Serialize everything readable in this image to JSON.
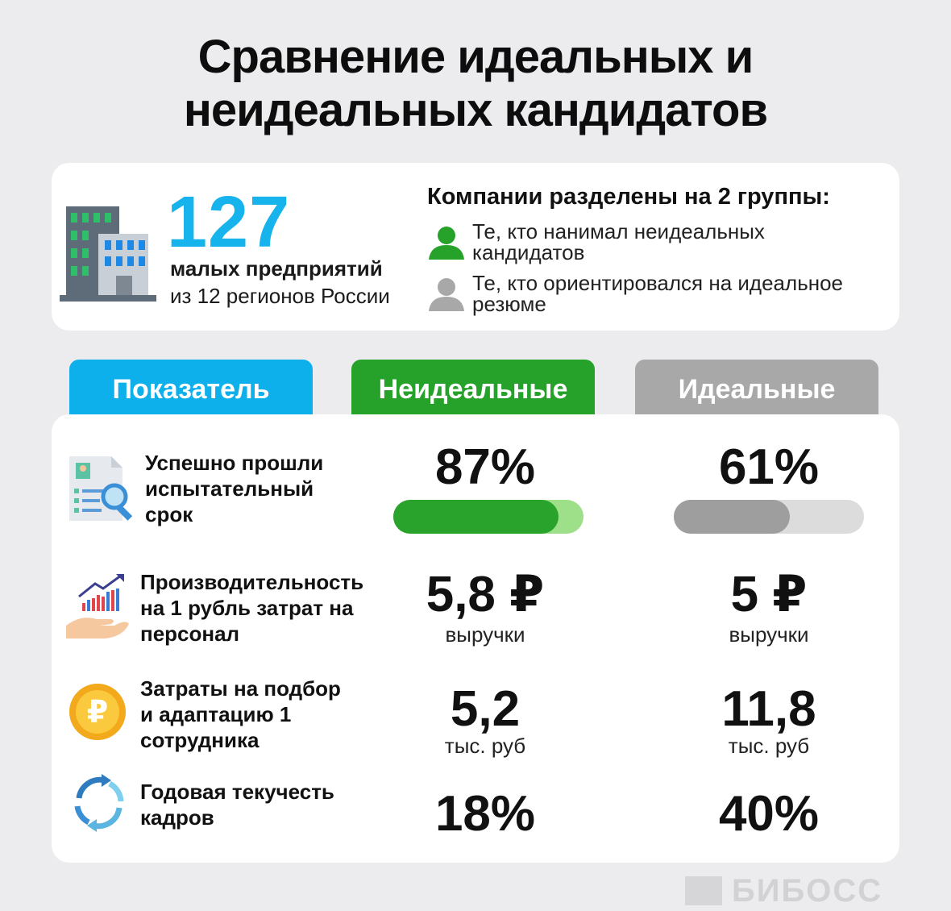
{
  "title": {
    "line1": "Сравнение идеальных и",
    "line2": "неидеальных кандидатов"
  },
  "summary": {
    "count": "127",
    "count_label": "малых предприятий",
    "region_label": "из 12 регионов России",
    "groups_title": "Компании разделены на 2 группы:",
    "groups": [
      {
        "line1": "Те, кто нанимал неидеальных",
        "line2": "кандидатов",
        "icon": "person-green-icon",
        "color": "#26a22a"
      },
      {
        "line1": "Те, кто ориентировался на идеальное",
        "line2": "резюме",
        "icon": "person-gray-icon",
        "color": "#a8a8a8"
      }
    ]
  },
  "headers": {
    "indicator": "Показатель",
    "non_ideal": "Неидеальные",
    "ideal": "Идеальные"
  },
  "colors": {
    "blue": "#0eb0ec",
    "green": "#26a22a",
    "gray": "#a8a8a8"
  },
  "rows": [
    {
      "label": [
        "Успешно прошли",
        "испытательный",
        "срок"
      ],
      "icon": "document-search-icon",
      "non_ideal": {
        "value": "87%",
        "progress": 0.87
      },
      "ideal": {
        "value": "61%",
        "progress": 0.61
      }
    },
    {
      "label": [
        "Производительность",
        "на 1 рубль затрат на",
        "персонал"
      ],
      "icon": "growth-hand-icon",
      "non_ideal": {
        "value": "5,8 ₽",
        "unit": "выручки"
      },
      "ideal": {
        "value": "5 ₽",
        "unit": "выручки"
      }
    },
    {
      "label": [
        "Затраты на подбор",
        "и адаптацию 1",
        "сотрудника"
      ],
      "icon": "ruble-coin-icon",
      "non_ideal": {
        "value": "5,2",
        "unit": "тыс. руб"
      },
      "ideal": {
        "value": "11,8",
        "unit": "тыс. руб"
      }
    },
    {
      "label": [
        "Годовая текучесть",
        "кадров"
      ],
      "icon": "cycle-arrows-icon",
      "non_ideal": {
        "value": "18%"
      },
      "ideal": {
        "value": "40%"
      }
    }
  ],
  "brand": "БИБОСС"
}
